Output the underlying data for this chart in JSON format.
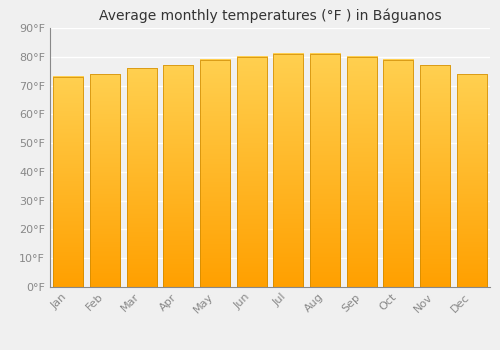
{
  "title": "Average monthly temperatures (°F ) in Báguanos",
  "months": [
    "Jan",
    "Feb",
    "Mar",
    "Apr",
    "May",
    "Jun",
    "Jul",
    "Aug",
    "Sep",
    "Oct",
    "Nov",
    "Dec"
  ],
  "values": [
    73,
    74,
    76,
    77,
    79,
    80,
    81,
    81,
    80,
    79,
    77,
    74
  ],
  "bar_color_light": "#FFD040",
  "bar_color_dark": "#FFA000",
  "ylim": [
    0,
    90
  ],
  "yticks": [
    0,
    10,
    20,
    30,
    40,
    50,
    60,
    70,
    80,
    90
  ],
  "ytick_labels": [
    "0°F",
    "10°F",
    "20°F",
    "30°F",
    "40°F",
    "50°F",
    "60°F",
    "70°F",
    "80°F",
    "90°F"
  ],
  "background_color": "#f0f0f0",
  "grid_color": "#ffffff",
  "title_fontsize": 10,
  "tick_fontsize": 8,
  "bar_edge_color": "#CC8800"
}
